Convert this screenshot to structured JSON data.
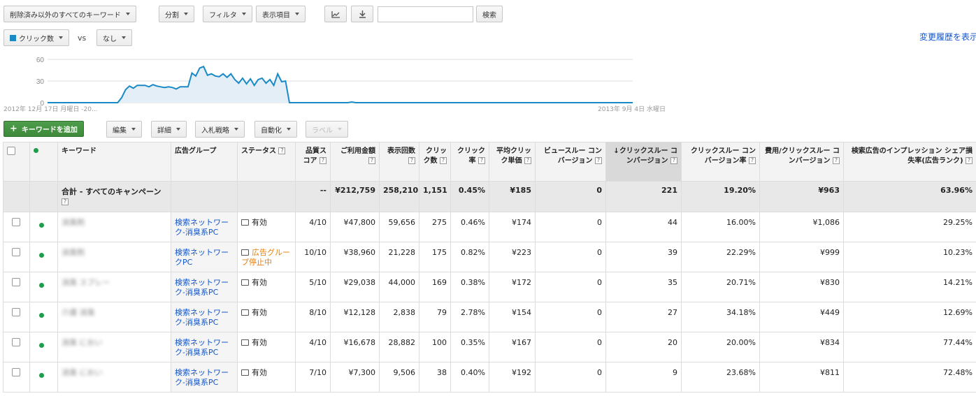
{
  "toolbar": {
    "keyword_filter": "削除済み以外のすべてのキーワード",
    "segment": "分割",
    "filter": "フィルタ",
    "columns": "表示項目",
    "search_button": "検索",
    "search_value": ""
  },
  "chart_controls": {
    "metric1": "クリック数",
    "vs": "vs",
    "metric2": "なし",
    "history_link": "変更履歴を表示"
  },
  "chart_data": {
    "type": "area",
    "yticks": [
      "60",
      "30",
      "0"
    ],
    "ylim": [
      0,
      60
    ],
    "start_label": "2012年 12月 17日 月曜日 -20...",
    "end_label": "2013年 9月 4日 水曜日",
    "series": [
      {
        "name": "クリック数",
        "color": "#1a8ac6",
        "values": [
          0,
          0,
          0,
          0,
          0,
          0,
          0,
          0,
          0,
          0,
          0,
          0,
          0,
          0,
          0,
          0,
          0,
          0,
          0,
          7,
          18,
          23,
          20,
          24,
          24,
          24,
          22,
          25,
          23,
          22,
          21,
          22,
          21,
          19,
          22,
          22,
          22,
          41,
          37,
          48,
          50,
          38,
          40,
          37,
          36,
          40,
          35,
          40,
          32,
          27,
          34,
          26,
          33,
          24,
          32,
          34,
          27,
          32,
          24,
          40,
          29,
          30,
          0,
          0,
          0,
          0,
          0,
          0,
          0,
          0,
          0,
          0,
          0,
          0,
          0,
          0,
          0,
          0,
          1,
          0,
          0,
          0,
          0,
          0,
          0,
          0,
          0,
          0,
          0,
          0,
          0,
          0,
          0,
          0,
          0,
          0,
          0,
          0,
          0,
          0,
          0,
          0,
          0,
          0,
          0,
          0,
          0,
          0,
          0,
          0,
          0,
          0,
          0,
          0,
          0,
          0,
          0,
          0,
          0,
          0,
          0,
          0,
          0,
          0,
          0,
          0,
          0,
          0,
          0,
          0,
          0,
          0,
          0,
          0,
          0,
          0,
          0,
          0,
          0,
          0,
          0,
          0,
          0,
          0,
          0,
          0,
          0,
          0,
          0,
          0,
          0
        ]
      }
    ]
  },
  "actions": {
    "add_keyword": "キーワードを追加",
    "edit": "編集",
    "details": "詳細",
    "bid_strategy": "入札戦略",
    "automate": "自動化",
    "labels": "ラベル"
  },
  "table": {
    "headers": {
      "keyword": "キーワード",
      "ad_group": "広告グループ",
      "status": "ステータス",
      "quality": "品質スコア",
      "cost": "ご利用金額",
      "impressions": "表示回数",
      "clicks": "クリック数",
      "ctr": "クリック率",
      "cpc": "平均クリック単価",
      "view_conv": "ビュースルー コンバージョン",
      "click_conv": "クリックスルー コンバージョン",
      "conv_rate": "クリックスルー コンバージョン率",
      "cost_per_conv": "費用/クリックスルー コンバージョン",
      "lost_is": "検索広告のインプレッション シェア損失率(広告ランク)"
    },
    "total": {
      "label": "合計 - すべてのキャンペーン",
      "quality": "--",
      "cost": "¥212,759",
      "impressions": "258,210",
      "clicks": "1,151",
      "ctr": "0.45%",
      "cpc": "¥185",
      "view_conv": "0",
      "click_conv": "221",
      "conv_rate": "19.20%",
      "cost_per_conv": "¥963",
      "lost_is": "63.96%"
    },
    "rows": [
      {
        "keyword": "消臭剤",
        "ad_group": "検索ネットワーク-消臭系PC",
        "status": "有効",
        "quality": "4/10",
        "cost": "¥47,800",
        "impressions": "59,656",
        "clicks": "275",
        "ctr": "0.46%",
        "cpc": "¥174",
        "view_conv": "0",
        "click_conv": "44",
        "conv_rate": "16.00%",
        "cost_per_conv": "¥1,086",
        "lost_is": "29.25%"
      },
      {
        "keyword": "消臭剤",
        "ad_group": "検索ネットワークPC",
        "status": "広告グループ停止中",
        "quality": "10/10",
        "cost": "¥38,960",
        "impressions": "21,228",
        "clicks": "175",
        "ctr": "0.82%",
        "cpc": "¥223",
        "view_conv": "0",
        "click_conv": "39",
        "conv_rate": "22.29%",
        "cost_per_conv": "¥999",
        "lost_is": "10.23%"
      },
      {
        "keyword": "消臭 スプレー",
        "ad_group": "検索ネットワーク-消臭系PC",
        "status": "有効",
        "quality": "5/10",
        "cost": "¥29,038",
        "impressions": "44,000",
        "clicks": "169",
        "ctr": "0.38%",
        "cpc": "¥172",
        "view_conv": "0",
        "click_conv": "35",
        "conv_rate": "20.71%",
        "cost_per_conv": "¥830",
        "lost_is": "14.21%"
      },
      {
        "keyword": "介護 消臭",
        "ad_group": "検索ネットワーク-消臭系PC",
        "status": "有効",
        "quality": "8/10",
        "cost": "¥12,128",
        "impressions": "2,838",
        "clicks": "79",
        "ctr": "2.78%",
        "cpc": "¥154",
        "view_conv": "0",
        "click_conv": "27",
        "conv_rate": "34.18%",
        "cost_per_conv": "¥449",
        "lost_is": "12.69%"
      },
      {
        "keyword": "消臭 におい",
        "ad_group": "検索ネットワーク-消臭系PC",
        "status": "有効",
        "quality": "4/10",
        "cost": "¥16,678",
        "impressions": "28,882",
        "clicks": "100",
        "ctr": "0.35%",
        "cpc": "¥167",
        "view_conv": "0",
        "click_conv": "20",
        "conv_rate": "20.00%",
        "cost_per_conv": "¥834",
        "lost_is": "77.44%"
      },
      {
        "keyword": "消臭 におい",
        "ad_group": "検索ネットワーク-消臭系PC",
        "status": "有効",
        "quality": "7/10",
        "cost": "¥7,300",
        "impressions": "9,506",
        "clicks": "38",
        "ctr": "0.40%",
        "cpc": "¥192",
        "view_conv": "0",
        "click_conv": "9",
        "conv_rate": "23.68%",
        "cost_per_conv": "¥811",
        "lost_is": "72.48%"
      }
    ]
  }
}
